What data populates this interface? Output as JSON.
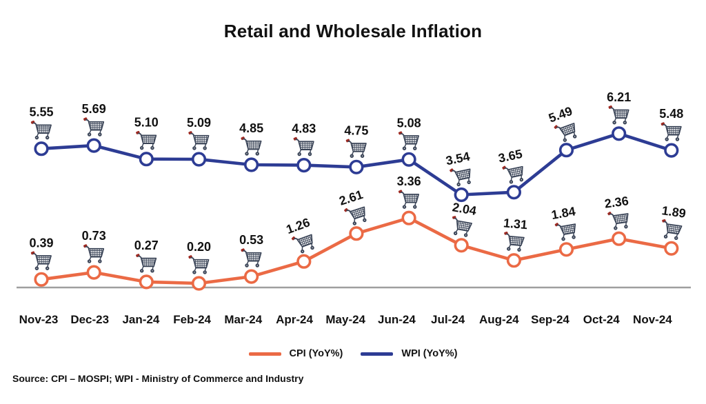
{
  "title": "Retail and Wholesale Inflation",
  "source_note": "Source: CPI – MOSPI; WPI - Ministry of Commerce and Industry",
  "legend": [
    {
      "label": "CPI (YoY%)",
      "color": "#eb6a45"
    },
    {
      "label": "WPI (YoY%)",
      "color": "#2d3c94"
    }
  ],
  "colors": {
    "cpi_line": "#eb6a45",
    "wpi_line": "#2d3c94",
    "axis_line": "#9e9e9e",
    "text": "#111111",
    "cart_body": "#3a4457",
    "cart_handle_tip": "#9e2a22",
    "marker_fill": "#ffffff"
  },
  "icons": {
    "point_icon": "shopping-cart-icon"
  },
  "chart_data": {
    "type": "line",
    "title": "Retail and Wholesale Inflation",
    "categories": [
      "Nov-23",
      "Dec-23",
      "Jan-24",
      "Feb-24",
      "Mar-24",
      "Apr-24",
      "May-24",
      "Jun-24",
      "Jul-24",
      "Aug-24",
      "Sep-24",
      "Oct-24",
      "Nov-24"
    ],
    "series": [
      {
        "name": "CPI (YoY%)",
        "color": "#eb6a45",
        "values": [
          0.39,
          0.73,
          0.27,
          0.2,
          0.53,
          1.26,
          2.61,
          3.36,
          2.04,
          1.31,
          1.84,
          2.36,
          1.89
        ],
        "label_tilts_deg": [
          0,
          0,
          0,
          0,
          0,
          -20,
          -18,
          0,
          10,
          5,
          -10,
          -8,
          8
        ]
      },
      {
        "name": "WPI (YoY%)",
        "color": "#2d3c94",
        "values": [
          5.55,
          5.69,
          5.1,
          5.09,
          4.85,
          4.83,
          4.75,
          5.08,
          3.54,
          3.65,
          5.49,
          6.21,
          5.48
        ],
        "label_tilts_deg": [
          0,
          0,
          0,
          0,
          0,
          0,
          0,
          0,
          -12,
          -12,
          -20,
          0,
          0
        ]
      }
    ],
    "data_labels": "above-points",
    "point_icon": "shopping-cart",
    "marker_style": "open-circle",
    "grid": false,
    "y_axis": "hidden",
    "x_axis_line": true,
    "legend_position": "bottom-center"
  }
}
